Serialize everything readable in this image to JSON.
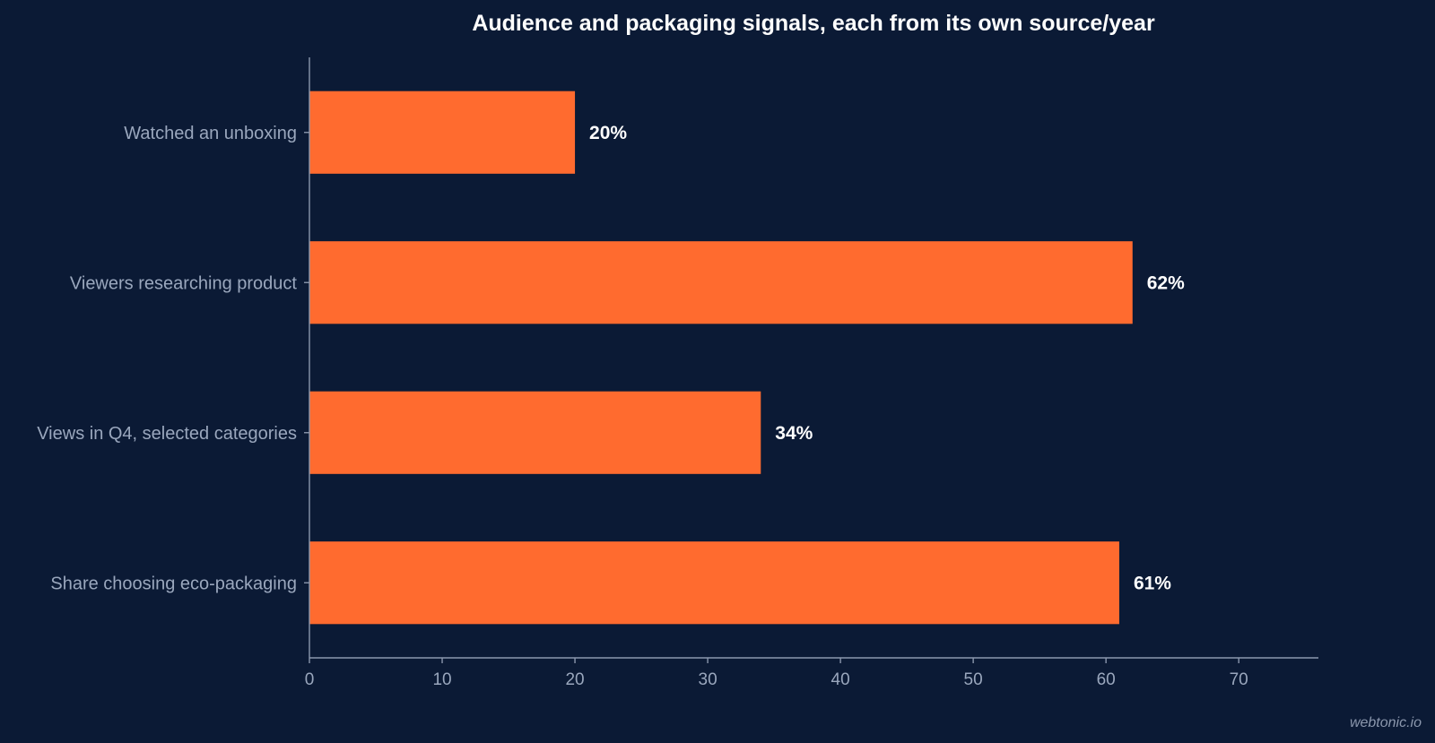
{
  "chart_data": {
    "type": "bar",
    "orientation": "horizontal",
    "title": "Audience and packaging signals, each from its own source/year",
    "categories": [
      "Watched an unboxing",
      "Viewers researching product",
      "Views in Q4, selected categories",
      "Share choosing eco-packaging"
    ],
    "values": [
      20,
      62,
      34,
      61
    ],
    "value_labels": [
      "20%",
      "62%",
      "34%",
      "61%"
    ],
    "xlabel": "",
    "ylabel": "",
    "xlim": [
      0,
      76
    ],
    "xticks": [
      0,
      10,
      20,
      30,
      40,
      50,
      60,
      70
    ],
    "grid": false,
    "legend": "none",
    "bar_color": "#ff6b2f"
  },
  "watermark": "webtonic.io",
  "colors": {
    "background": "#0b1a35",
    "axis": "#8b97ad",
    "label": "#9aa7bd",
    "value_text": "#ffffff"
  }
}
